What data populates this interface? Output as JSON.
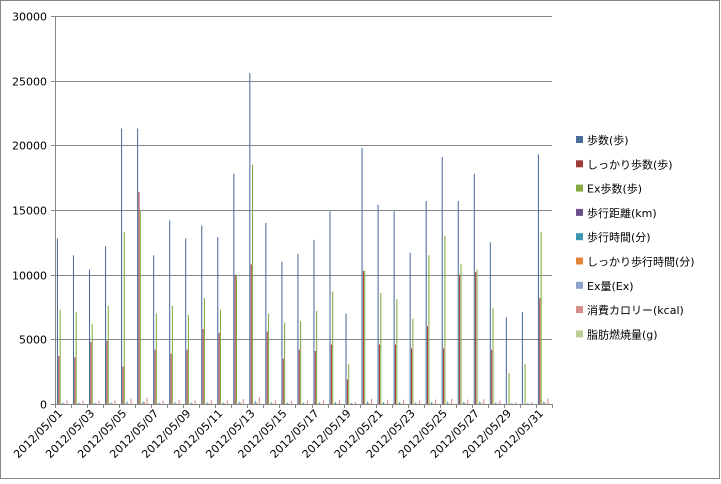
{
  "chart_data": {
    "type": "bar",
    "title": "",
    "xlabel": "",
    "ylabel": "",
    "ylim": [
      0,
      30000
    ],
    "yticks": [
      0,
      5000,
      10000,
      15000,
      20000,
      25000,
      30000
    ],
    "grid": true,
    "legend_position": "right",
    "categories": [
      "2012/05/01",
      "2012/05/02",
      "2012/05/03",
      "2012/05/04",
      "2012/05/05",
      "2012/05/06",
      "2012/05/07",
      "2012/05/08",
      "2012/05/09",
      "2012/05/10",
      "2012/05/11",
      "2012/05/12",
      "2012/05/13",
      "2012/05/14",
      "2012/05/15",
      "2012/05/16",
      "2012/05/17",
      "2012/05/18",
      "2012/05/19",
      "2012/05/20",
      "2012/05/21",
      "2012/05/22",
      "2012/05/23",
      "2012/05/24",
      "2012/05/25",
      "2012/05/26",
      "2012/05/27",
      "2012/05/28",
      "2012/05/29",
      "2012/05/30",
      "2012/05/31"
    ],
    "tick_labels": [
      "2012/05/01",
      "2012/05/03",
      "2012/05/05",
      "2012/05/07",
      "2012/05/09",
      "2012/05/11",
      "2012/05/13",
      "2012/05/15",
      "2012/05/17",
      "2012/05/19",
      "2012/05/21",
      "2012/05/23",
      "2012/05/25",
      "2012/05/27",
      "2012/05/29",
      "2012/05/31"
    ],
    "series": [
      {
        "name": "歩数(歩)",
        "color": "#4a6f9c",
        "values": [
          12800,
          11500,
          10400,
          12200,
          21300,
          21300,
          11500,
          14200,
          12800,
          13800,
          12900,
          17800,
          25600,
          14000,
          11000,
          11600,
          12700,
          14900,
          7000,
          19800,
          15400,
          14900,
          11700,
          15700,
          19100,
          15700,
          17800,
          12500,
          6700,
          7100,
          19300
        ]
      },
      {
        "name": "しっかり歩数(歩)",
        "color": "#a23c3a",
        "values": [
          3700,
          3600,
          4800,
          4900,
          2900,
          16400,
          4200,
          3900,
          4200,
          5800,
          5500,
          10000,
          10800,
          5600,
          3500,
          4200,
          4100,
          4600,
          1900,
          10300,
          4600,
          4600,
          4300,
          6000,
          4300,
          10000,
          10200,
          4200,
          0,
          0,
          8200
        ]
      },
      {
        "name": "Ex歩数(歩)",
        "color": "#86a943",
        "values": [
          7300,
          7100,
          6200,
          7600,
          13300,
          14900,
          7000,
          7600,
          6900,
          8200,
          7300,
          9900,
          18500,
          7000,
          6300,
          6400,
          7200,
          8700,
          3100,
          10300,
          8600,
          8100,
          6600,
          11500,
          13000,
          10800,
          10400,
          7400,
          2400,
          3100,
          13300
        ]
      },
      {
        "name": "歩行距離(km)",
        "color": "#6b4f8b",
        "values": [
          9,
          8,
          7,
          9,
          15,
          15,
          8,
          10,
          9,
          10,
          9,
          13,
          18,
          10,
          8,
          8,
          9,
          11,
          5,
          14,
          11,
          11,
          8,
          11,
          14,
          11,
          13,
          9,
          5,
          5,
          14
        ]
      },
      {
        "name": "歩行時間(分)",
        "color": "#3c97b0",
        "values": [
          120,
          110,
          100,
          115,
          200,
          200,
          110,
          135,
          120,
          130,
          120,
          170,
          240,
          130,
          105,
          110,
          120,
          140,
          65,
          185,
          145,
          140,
          110,
          150,
          180,
          150,
          170,
          120,
          65,
          70,
          180
        ]
      },
      {
        "name": "しっかり歩行時間(分)",
        "color": "#e2873a",
        "values": [
          35,
          35,
          45,
          45,
          28,
          150,
          40,
          38,
          40,
          55,
          52,
          95,
          100,
          52,
          33,
          40,
          38,
          44,
          18,
          95,
          44,
          44,
          40,
          57,
          41,
          93,
          95,
          40,
          0,
          0,
          78
        ]
      },
      {
        "name": "Ex量(Ex)",
        "color": "#8ea3cf",
        "values": [
          3,
          3,
          3,
          3,
          5,
          6,
          3,
          3,
          3,
          3,
          3,
          4,
          7,
          3,
          3,
          3,
          3,
          3,
          1,
          4,
          3,
          3,
          3,
          4,
          5,
          4,
          4,
          3,
          1,
          1,
          5
        ]
      },
      {
        "name": "消費カロリー(kcal)",
        "color": "#d68e8c",
        "values": [
          280,
          260,
          250,
          270,
          420,
          480,
          260,
          300,
          270,
          300,
          280,
          380,
          520,
          300,
          250,
          260,
          280,
          320,
          150,
          400,
          330,
          320,
          260,
          340,
          400,
          340,
          370,
          270,
          140,
          150,
          430
        ]
      },
      {
        "name": "脂肪燃焼量(g)",
        "color": "#bccf94",
        "values": [
          18,
          17,
          16,
          17,
          27,
          31,
          17,
          19,
          17,
          19,
          18,
          24,
          33,
          19,
          16,
          17,
          18,
          20,
          10,
          26,
          21,
          20,
          17,
          22,
          26,
          22,
          24,
          17,
          9,
          10,
          28
        ]
      }
    ]
  }
}
